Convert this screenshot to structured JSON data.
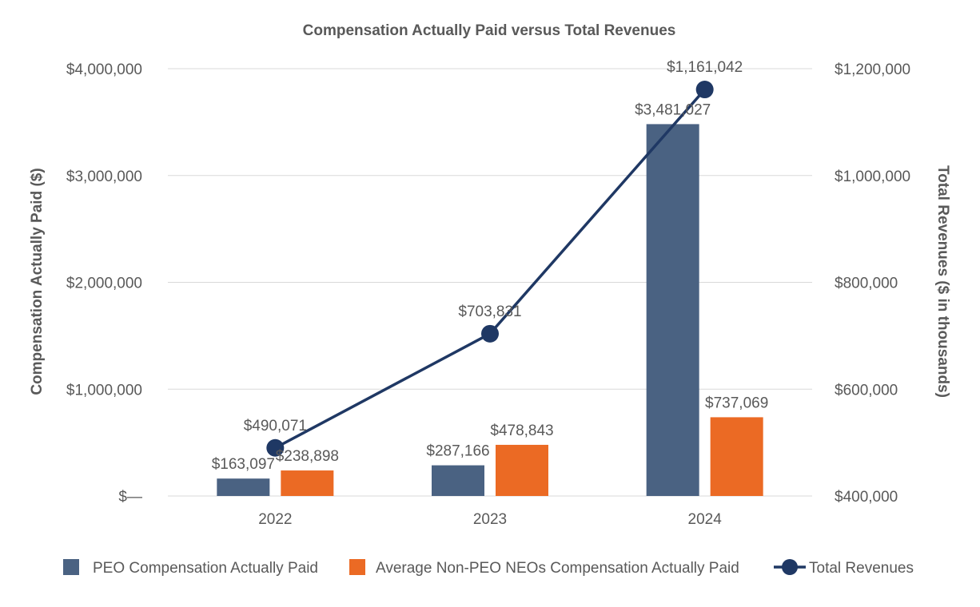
{
  "chart_data": {
    "type": "bar",
    "title": "Compensation Actually Paid versus Total Revenues",
    "categories": [
      "2022",
      "2023",
      "2024"
    ],
    "series": [
      {
        "name": "PEO Compensation Actually Paid",
        "type": "bar",
        "axis": "left",
        "color": "#4a6282",
        "values": [
          163097,
          287166,
          3481027
        ],
        "labels": [
          "$163,097",
          "$287,166",
          "$3,481,027"
        ]
      },
      {
        "name": "Average Non-PEO NEOs Compensation Actually Paid",
        "type": "bar",
        "axis": "left",
        "color": "#eb6a24",
        "values": [
          238898,
          478843,
          737069
        ],
        "labels": [
          "$238,898",
          "$478,843",
          "$737,069"
        ]
      },
      {
        "name": "Total Revenues",
        "type": "line",
        "axis": "right",
        "color": "#1f3864",
        "values": [
          490071,
          703831,
          1161042
        ],
        "labels": [
          "$490,071",
          "$703,831",
          "$1,161,042"
        ]
      }
    ],
    "y_left": {
      "label": "Compensation Actually Paid ($)",
      "lim": [
        0,
        4000000
      ],
      "ticks": [
        0,
        1000000,
        2000000,
        3000000,
        4000000
      ],
      "tick_labels": [
        "$—",
        "$1,000,000",
        "$2,000,000",
        "$3,000,000",
        "$4,000,000"
      ]
    },
    "y_right": {
      "label": "Total Revenues ($ in thousands)",
      "lim": [
        400000,
        1200000
      ],
      "ticks": [
        400000,
        600000,
        800000,
        1000000,
        1200000
      ],
      "tick_labels": [
        "$400,000",
        "$600,000",
        "$800,000",
        "$1,000,000",
        "$1,200,000"
      ]
    },
    "grid": true,
    "legend": "bottom"
  }
}
